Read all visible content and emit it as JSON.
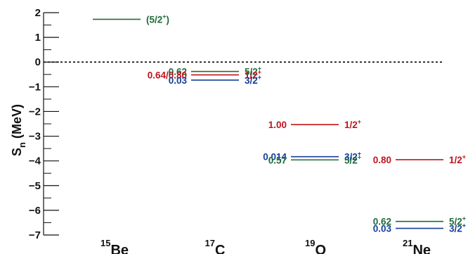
{
  "chart_data": {
    "type": "level-scheme",
    "ylabel": {
      "main": "S",
      "sub": "n",
      "rest": " (MeV)"
    },
    "ylim": [
      -7,
      2
    ],
    "yticks": [
      "2",
      "1",
      "0",
      "−1",
      "−2",
      "−3",
      "−4",
      "−5",
      "−6",
      "−7"
    ],
    "zero_line": "dotted",
    "colors": {
      "green": "#1f6b3a",
      "red": "#c0141d",
      "blue": "#143f96",
      "axis": "#111111"
    },
    "nuclei": [
      {
        "mass": "15",
        "symbol": "Be"
      },
      {
        "mass": "17",
        "symbol": "C"
      },
      {
        "mass": "19",
        "symbol": "O"
      },
      {
        "mass": "21",
        "symbol": "Ne"
      }
    ],
    "levels": [
      {
        "nucleus": 0,
        "energy": 1.73,
        "color": "green",
        "left_label": "",
        "jpi": "(5/2",
        "jpi_sup": "+",
        "jpi_suffix": ")"
      },
      {
        "nucleus": 1,
        "energy": -0.38,
        "color": "green",
        "left_label": "0.62",
        "jpi": "5/2",
        "jpi_sup": "+",
        "jpi_suffix": ""
      },
      {
        "nucleus": 1,
        "energy": -0.52,
        "color": "red",
        "left_label": "0.64/0.80",
        "jpi": "1/2",
        "jpi_sup": "+",
        "jpi_suffix": ""
      },
      {
        "nucleus": 1,
        "energy": -0.73,
        "color": "blue",
        "left_label": "0.03",
        "jpi": "3/2",
        "jpi_sup": "+",
        "jpi_suffix": ""
      },
      {
        "nucleus": 2,
        "energy": -2.53,
        "color": "red",
        "left_label": "1.00",
        "jpi": "1/2",
        "jpi_sup": "+",
        "jpi_suffix": ""
      },
      {
        "nucleus": 2,
        "energy": -3.83,
        "color": "blue",
        "left_label": "0.014",
        "jpi": "3/2",
        "jpi_sup": "+",
        "jpi_suffix": ""
      },
      {
        "nucleus": 2,
        "energy": -3.96,
        "color": "green",
        "left_label": "0.57",
        "jpi": "5/2",
        "jpi_sup": "+",
        "jpi_suffix": ""
      },
      {
        "nucleus": 3,
        "energy": -3.95,
        "color": "red",
        "left_label": "0.80",
        "jpi": "1/2",
        "jpi_sup": "+",
        "jpi_suffix": ""
      },
      {
        "nucleus": 3,
        "energy": -6.45,
        "color": "green",
        "left_label": "0.62",
        "jpi": "5/2",
        "jpi_sup": "+",
        "jpi_suffix": ""
      },
      {
        "nucleus": 3,
        "energy": -6.73,
        "color": "blue",
        "left_label": "0.03",
        "jpi": "3/2",
        "jpi_sup": "+",
        "jpi_suffix": ""
      }
    ]
  }
}
